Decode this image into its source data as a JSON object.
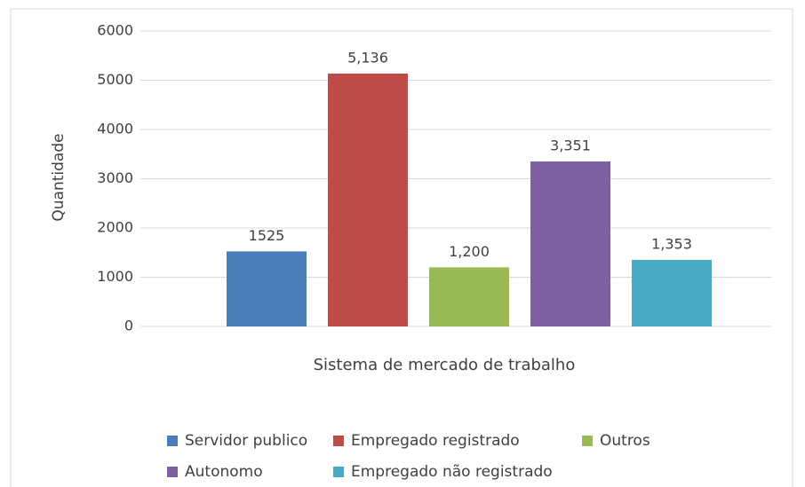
{
  "chart_data": {
    "type": "bar",
    "xlabel": "Sistema de mercado de trabalho",
    "ylabel": "Quantidade",
    "categories": [
      null
    ],
    "series": [
      {
        "name": "Servidor publico",
        "color": "#4a7ebb",
        "values": [
          1525
        ],
        "value_labels": [
          "1525"
        ]
      },
      {
        "name": "Empregado registrado",
        "color": "#be4b48",
        "values": [
          5136
        ],
        "value_labels": [
          "5,136"
        ]
      },
      {
        "name": "Outros",
        "color": "#98b954",
        "values": [
          1200
        ],
        "value_labels": [
          "1,200"
        ]
      },
      {
        "name": "Autonomo",
        "color": "#7d60a0",
        "values": [
          3351
        ],
        "value_labels": [
          "3,351"
        ]
      },
      {
        "name": "Empregado não registrado",
        "color": "#46aac5",
        "values": [
          1353
        ],
        "value_labels": [
          "1,353"
        ]
      }
    ],
    "ylim": [
      0,
      6000
    ],
    "yticks": [
      0,
      1000,
      2000,
      3000,
      4000,
      5000,
      6000
    ],
    "grid": true,
    "legend": "bottom"
  }
}
